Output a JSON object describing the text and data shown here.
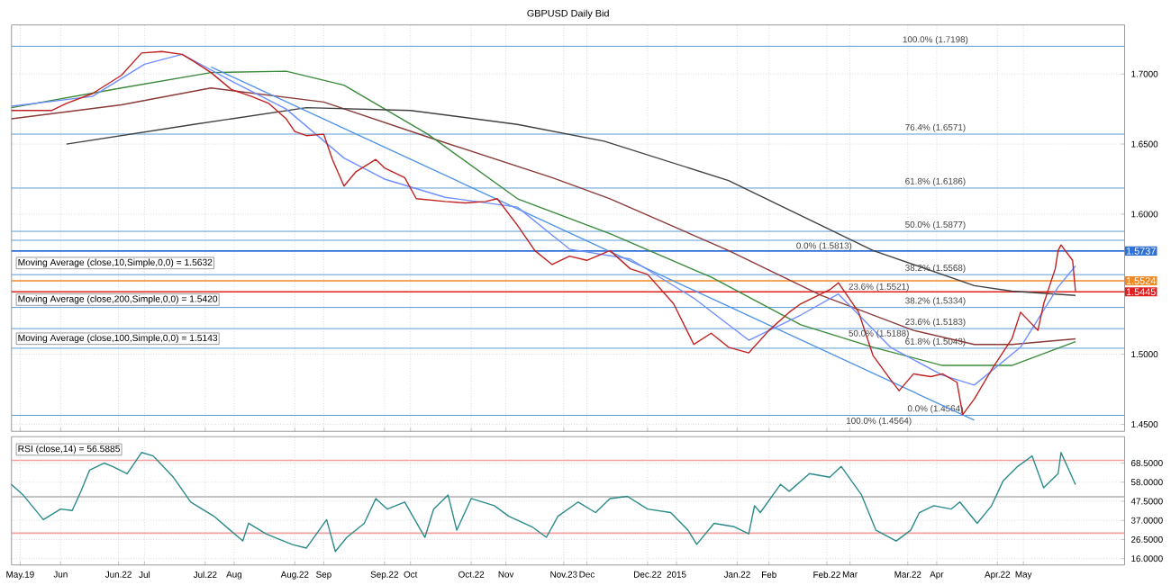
{
  "chart_data": [
    {
      "type": "line",
      "title": "GBPUSD Daily Bid",
      "xlim": [
        "2014-05-16",
        "2015-06-05"
      ],
      "ylim": [
        1.445,
        1.735
      ],
      "xticks": [
        {
          "value": "2014-05-19",
          "label": null
        },
        {
          "value": "2014-06-02",
          "label": null
        },
        {
          "value": "2014-06-22",
          "label": null
        },
        {
          "value": "2014-07-01",
          "label": null
        },
        {
          "value": "2014-07-22",
          "label": null
        },
        {
          "value": "2014-08-01",
          "label": null
        },
        {
          "value": "2014-08-22",
          "label": null
        },
        {
          "value": "2014-09-01",
          "label": null
        },
        {
          "value": "2014-09-22",
          "label": null
        },
        {
          "value": "2014-10-01",
          "label": null
        },
        {
          "value": "2014-10-22",
          "label": null
        },
        {
          "value": "2014-11-03",
          "label": null
        },
        {
          "value": "2014-11-23",
          "label": null
        },
        {
          "value": "2014-12-01",
          "label": null
        },
        {
          "value": "2014-12-22",
          "label": null
        },
        {
          "value": "2015-01-01",
          "label": null
        },
        {
          "value": "2015-01-22",
          "label": null
        },
        {
          "value": "2015-02-02",
          "label": null
        },
        {
          "value": "2015-02-22",
          "label": null
        },
        {
          "value": "2015-03-02",
          "label": null
        },
        {
          "value": "2015-03-22",
          "label": null
        },
        {
          "value": "2015-04-01",
          "label": null
        },
        {
          "value": "2015-04-22",
          "label": null
        },
        {
          "value": "2015-05-01",
          "label": null
        }
      ],
      "yticks": [
        {
          "value": 1.45,
          "label": "1.4500"
        },
        {
          "value": 1.5,
          "label": "1.5000"
        },
        {
          "value": 1.6,
          "label": "1.6000"
        },
        {
          "value": 1.65,
          "label": "1.6500"
        },
        {
          "value": 1.7,
          "label": "1.7000"
        }
      ],
      "tick_labels": "y",
      "grid": true,
      "series": [
        {
          "color": "#8b3a3a",
          "x": [
            "2014-05-16",
            "2014-06-23",
            "2014-07-24",
            "2014-09-01",
            "2014-10-07",
            "2014-11-19",
            "2014-12-09",
            "2015-01-19",
            "2015-02-20",
            "2015-03-24",
            "2015-04-14",
            "2015-04-27",
            "2015-05-19"
          ],
          "values": [
            1.668,
            1.678,
            1.69,
            1.68,
            1.655,
            1.626,
            1.611,
            1.574,
            1.542,
            1.517,
            1.507,
            1.507,
            1.511
          ]
        },
        {
          "color": "#3a8a3a",
          "x": [
            "2014-05-16",
            "2014-06-23",
            "2014-07-24",
            "2014-08-19",
            "2014-09-08",
            "2014-10-07",
            "2014-11-07",
            "2014-12-09",
            "2015-01-13",
            "2015-02-13",
            "2015-03-10",
            "2015-04-03",
            "2015-04-27",
            "2015-05-19"
          ],
          "values": [
            1.676,
            1.69,
            1.701,
            1.702,
            1.692,
            1.657,
            1.611,
            1.586,
            1.555,
            1.521,
            1.505,
            1.492,
            1.492,
            1.509
          ]
        },
        {
          "color": "#404040",
          "x": [
            "2014-06-04",
            "2014-07-18",
            "2014-08-26",
            "2014-10-01",
            "2014-11-07",
            "2014-12-07",
            "2015-01-19",
            "2015-03-10",
            "2015-04-14",
            "2015-04-27",
            "2015-05-19"
          ],
          "values": [
            1.65,
            1.664,
            1.676,
            1.674,
            1.664,
            1.652,
            1.624,
            1.574,
            1.549,
            1.545,
            1.542
          ]
        },
        {
          "color": "#4f94e8",
          "x": [
            "2014-07-24",
            "2015-04-14"
          ],
          "values": [
            1.705,
            1.453
          ]
        },
        {
          "color": "#6f8fff",
          "x": [
            "2014-05-16",
            "2014-06-13",
            "2014-07-01",
            "2014-07-14",
            "2014-08-01",
            "2014-08-19",
            "2014-09-08",
            "2014-09-22",
            "2014-10-13",
            "2014-11-07",
            "2014-11-25",
            "2014-12-16",
            "2015-01-07",
            "2015-01-26",
            "2015-02-13",
            "2015-02-26",
            "2015-03-16",
            "2015-04-03",
            "2015-04-14",
            "2015-04-30",
            "2015-05-13",
            "2015-05-19"
          ],
          "values": [
            1.677,
            1.684,
            1.707,
            1.714,
            1.694,
            1.675,
            1.64,
            1.625,
            1.612,
            1.605,
            1.575,
            1.568,
            1.54,
            1.51,
            1.528,
            1.543,
            1.505,
            1.485,
            1.478,
            1.505,
            1.548,
            1.563
          ]
        },
        {
          "color": "#c02020",
          "x": [
            "2014-05-16",
            "2014-05-30",
            "2014-06-04",
            "2014-06-13",
            "2014-06-23",
            "2014-06-30",
            "2014-07-07",
            "2014-07-14",
            "2014-07-18",
            "2014-07-24",
            "2014-07-31",
            "2014-08-07",
            "2014-08-13",
            "2014-08-19",
            "2014-08-22",
            "2014-08-26",
            "2014-09-01",
            "2014-09-04",
            "2014-09-08",
            "2014-09-12",
            "2014-09-19",
            "2014-09-22",
            "2014-09-29",
            "2014-10-03",
            "2014-10-13",
            "2014-10-20",
            "2014-10-27",
            "2014-10-31",
            "2014-11-07",
            "2014-11-13",
            "2014-11-19",
            "2014-11-25",
            "2014-12-01",
            "2014-12-09",
            "2014-12-16",
            "2014-12-22",
            "2014-12-31",
            "2015-01-07",
            "2015-01-13",
            "2015-01-19",
            "2015-01-26",
            "2015-02-02",
            "2015-02-09",
            "2015-02-13",
            "2015-02-23",
            "2015-02-26",
            "2015-03-05",
            "2015-03-10",
            "2015-03-16",
            "2015-03-19",
            "2015-03-24",
            "2015-03-30",
            "2015-04-03",
            "2015-04-08",
            "2015-04-10",
            "2015-04-14",
            "2015-04-20",
            "2015-04-27",
            "2015-04-30",
            "2015-05-06",
            "2015-05-08",
            "2015-05-12",
            "2015-05-13",
            "2015-05-14",
            "2015-05-18",
            "2015-05-19"
          ],
          "values": [
            1.674,
            1.674,
            1.679,
            1.686,
            1.699,
            1.715,
            1.716,
            1.714,
            1.709,
            1.701,
            1.689,
            1.684,
            1.679,
            1.668,
            1.659,
            1.656,
            1.657,
            1.639,
            1.62,
            1.63,
            1.639,
            1.633,
            1.626,
            1.611,
            1.609,
            1.608,
            1.609,
            1.611,
            1.592,
            1.574,
            1.564,
            1.57,
            1.567,
            1.574,
            1.561,
            1.557,
            1.536,
            1.507,
            1.515,
            1.505,
            1.501,
            1.517,
            1.53,
            1.536,
            1.546,
            1.551,
            1.53,
            1.499,
            1.482,
            1.474,
            1.486,
            1.484,
            1.486,
            1.48,
            1.457,
            1.468,
            1.489,
            1.511,
            1.53,
            1.517,
            1.536,
            1.561,
            1.574,
            1.578,
            1.567,
            1.545
          ]
        }
      ],
      "ref_lines": [
        {
          "axis": "y",
          "value": 1.7198,
          "label": "100.0% (1.7198)"
        },
        {
          "axis": "y",
          "value": 1.6571,
          "label": "76.4% (1.6571)"
        },
        {
          "axis": "y",
          "value": 1.6186,
          "label": "61.8% (1.6186)"
        },
        {
          "axis": "y",
          "value": 1.5877,
          "label": "50.0% (1.5877)"
        },
        {
          "axis": "y",
          "value": 1.5813,
          "label": "0.0% (1.5813)"
        },
        {
          "axis": "y",
          "value": 1.5568,
          "label": "38.2% (1.5568)"
        },
        {
          "axis": "y",
          "value": 1.5334,
          "label": "38.2% (1.5334)"
        },
        {
          "axis": "y",
          "value": 1.5183,
          "label": "23.6% (1.5183)"
        },
        {
          "axis": "y",
          "value": 1.5043,
          "label": "61.8% (1.5043)"
        },
        {
          "axis": "y",
          "value": 1.4564,
          "label": "0.0% (1.4564)"
        },
        {
          "axis": "y",
          "value": 1.5737,
          "label": "1.5737",
          "color": "#2f6fd8"
        },
        {
          "axis": "y",
          "value": 1.5524,
          "label": "1.5524",
          "color": "#f08a24"
        },
        {
          "axis": "y",
          "value": 1.5445,
          "label": "1.5445",
          "color": "#e02020"
        }
      ],
      "annotations": [
        "Moving Average (close,10,Simple,0,0) = 1.5632",
        "Moving Average (close,200,Simple,0,0) = 1.5420",
        "Moving Average (close,100,Simple,0,0) = 1.5143",
        {
          "text": "23.6% (1.5521)",
          "x": "2015-03-12",
          "y": 1.5521
        },
        {
          "text": "50.0% (1.5188)",
          "x": "2015-03-12",
          "y": 1.5188
        },
        {
          "text": "100.0% (1.4564)",
          "x": "2015-03-12",
          "y": 1.4564
        }
      ]
    },
    {
      "type": "line",
      "xlim": [
        "2014-05-16",
        "2015-06-05"
      ],
      "ylim": [
        12.5,
        83
      ],
      "xticks": [
        {
          "value": "2014-05-19",
          "label": "May.19"
        },
        {
          "value": "2014-06-02",
          "label": "Jun"
        },
        {
          "value": "2014-06-22",
          "label": "Jun.22"
        },
        {
          "value": "2014-07-01",
          "label": "Jul"
        },
        {
          "value": "2014-07-22",
          "label": "Jul.22"
        },
        {
          "value": "2014-08-01",
          "label": "Aug"
        },
        {
          "value": "2014-08-22",
          "label": "Aug.22"
        },
        {
          "value": "2014-09-01",
          "label": "Sep"
        },
        {
          "value": "2014-09-22",
          "label": "Sep.22"
        },
        {
          "value": "2014-10-01",
          "label": "Oct"
        },
        {
          "value": "2014-10-22",
          "label": "Oct.22"
        },
        {
          "value": "2014-11-03",
          "label": "Nov"
        },
        {
          "value": "2014-11-23",
          "label": "Nov.23"
        },
        {
          "value": "2014-12-01",
          "label": "Dec"
        },
        {
          "value": "2014-12-22",
          "label": "Dec.22"
        },
        {
          "value": "2015-01-01",
          "label": "2015"
        },
        {
          "value": "2015-01-22",
          "label": "Jan.22"
        },
        {
          "value": "2015-02-02",
          "label": "Feb"
        },
        {
          "value": "2015-02-22",
          "label": "Feb.22"
        },
        {
          "value": "2015-03-02",
          "label": "Mar"
        },
        {
          "value": "2015-03-22",
          "label": "Mar.22"
        },
        {
          "value": "2015-04-01",
          "label": "Apr"
        },
        {
          "value": "2015-04-22",
          "label": "Apr.22"
        },
        {
          "value": "2015-05-01",
          "label": "May"
        }
      ],
      "yticks": [
        {
          "value": 16,
          "label": "16.0000"
        },
        {
          "value": 26.5,
          "label": "26.5000"
        },
        {
          "value": 37,
          "label": "37.0000"
        },
        {
          "value": 47.5,
          "label": "47.5000"
        },
        {
          "value": 58,
          "label": "58.0000"
        },
        {
          "value": 68.5,
          "label": "68.5000"
        }
      ],
      "grid": true,
      "series": [
        {
          "color": "#2a8a8a",
          "x": [
            "2014-05-16",
            "2014-05-20",
            "2014-05-27",
            "2014-06-02",
            "2014-06-06",
            "2014-06-09",
            "2014-06-12",
            "2014-06-17",
            "2014-06-20",
            "2014-06-25",
            "2014-06-30",
            "2014-07-04",
            "2014-07-11",
            "2014-07-17",
            "2014-07-25",
            "2014-08-04",
            "2014-08-06",
            "2014-08-12",
            "2014-08-15",
            "2014-08-21",
            "2014-08-26",
            "2014-09-02",
            "2014-09-05",
            "2014-09-09",
            "2014-09-15",
            "2014-09-19",
            "2014-09-23",
            "2014-09-29",
            "2014-10-06",
            "2014-10-09",
            "2014-10-14",
            "2014-10-17",
            "2014-10-22",
            "2014-10-30",
            "2014-11-04",
            "2014-11-12",
            "2014-11-17",
            "2014-11-21",
            "2014-11-28",
            "2014-12-04",
            "2014-12-09",
            "2014-12-15",
            "2014-12-22",
            "2014-12-30",
            "2015-01-05",
            "2015-01-08",
            "2015-01-14",
            "2015-01-21",
            "2015-01-26",
            "2015-01-28",
            "2015-01-30",
            "2015-02-06",
            "2015-02-09",
            "2015-02-16",
            "2015-02-23",
            "2015-02-27",
            "2015-03-06",
            "2015-03-11",
            "2015-03-18",
            "2015-03-23",
            "2015-03-26",
            "2015-03-31",
            "2015-04-06",
            "2015-04-09",
            "2015-04-15",
            "2015-04-20",
            "2015-04-24",
            "2015-04-29",
            "2015-05-04",
            "2015-05-08",
            "2015-05-13",
            "2015-05-14",
            "2015-05-19"
          ],
          "values": [
            56.8,
            51,
            37.4,
            43.2,
            42.4,
            52.9,
            64.6,
            68.5,
            66.6,
            62.6,
            74.3,
            72.4,
            60.7,
            47.1,
            39.3,
            25.7,
            35.4,
            29.6,
            27.7,
            23.8,
            21.8,
            37.4,
            19.9,
            27.7,
            35.4,
            49,
            43.2,
            47.1,
            27.7,
            43.2,
            51,
            31.6,
            49,
            45.1,
            39.3,
            33.5,
            27.7,
            39.3,
            47.1,
            41.3,
            49,
            50.2,
            43.2,
            41.3,
            31.6,
            23.8,
            35.4,
            33.5,
            29.6,
            45.1,
            41.3,
            56.8,
            53,
            62.7,
            60.7,
            66.6,
            51,
            31.6,
            25.7,
            31.6,
            41.3,
            45.1,
            43.2,
            47.1,
            35.4,
            45.1,
            58.8,
            66.6,
            72.4,
            54.9,
            62.7,
            74.3,
            56.6
          ]
        }
      ],
      "ref_lines": [
        {
          "axis": "y",
          "value": 70,
          "color": "#f4a0a0"
        },
        {
          "axis": "y",
          "value": 50,
          "color": "#b0b0b0"
        },
        {
          "axis": "y",
          "value": 30,
          "color": "#f4a0a0"
        }
      ],
      "annotations": [
        "RSI (close,14) = 56.5885"
      ]
    }
  ]
}
